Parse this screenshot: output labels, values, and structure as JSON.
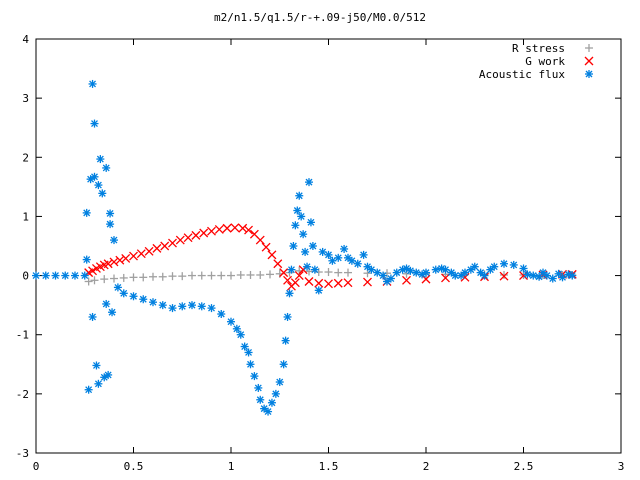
{
  "chart_data": {
    "type": "scatter",
    "title": "m2/n1.5/q1.5/r-+.09-j50/M0.0/512",
    "xlabel": "",
    "ylabel": "",
    "xlim": [
      0,
      3
    ],
    "ylim": [
      -3,
      4
    ],
    "x_ticks": [
      "0",
      "0.5",
      "1",
      "1.5",
      "2",
      "2.5",
      "3"
    ],
    "y_ticks": [
      "-3",
      "-2",
      "-1",
      "0",
      "1",
      "2",
      "3",
      "4"
    ],
    "x_tick_values": [
      0,
      0.5,
      1,
      1.5,
      2,
      2.5,
      3
    ],
    "y_tick_values": [
      -3,
      -2,
      -1,
      0,
      1,
      2,
      3,
      4
    ],
    "grid": false,
    "legend_position": "top-right",
    "series": [
      {
        "name": "R stress",
        "marker": "plus",
        "color": "#a0a0a0",
        "points": [
          [
            0.27,
            -0.1
          ],
          [
            0.3,
            -0.08
          ],
          [
            0.35,
            -0.06
          ],
          [
            0.4,
            -0.05
          ],
          [
            0.45,
            -0.04
          ],
          [
            0.5,
            -0.03
          ],
          [
            0.55,
            -0.03
          ],
          [
            0.6,
            -0.02
          ],
          [
            0.65,
            -0.02
          ],
          [
            0.7,
            -0.01
          ],
          [
            0.75,
            -0.01
          ],
          [
            0.8,
            0.0
          ],
          [
            0.85,
            0.0
          ],
          [
            0.9,
            0.0
          ],
          [
            0.95,
            0.0
          ],
          [
            1.0,
            0.0
          ],
          [
            1.05,
            0.01
          ],
          [
            1.1,
            0.01
          ],
          [
            1.15,
            0.01
          ],
          [
            1.2,
            0.02
          ],
          [
            1.25,
            0.03
          ],
          [
            1.3,
            0.05
          ],
          [
            1.35,
            0.08
          ],
          [
            1.4,
            0.07
          ],
          [
            1.45,
            0.06
          ],
          [
            1.5,
            0.06
          ],
          [
            1.55,
            0.05
          ],
          [
            1.6,
            0.05
          ],
          [
            1.7,
            0.04
          ],
          [
            1.8,
            0.04
          ],
          [
            1.9,
            0.03
          ],
          [
            2.0,
            0.03
          ],
          [
            2.1,
            0.02
          ],
          [
            2.2,
            0.02
          ],
          [
            2.3,
            0.02
          ],
          [
            2.4,
            0.01
          ],
          [
            2.5,
            0.01
          ],
          [
            2.6,
            0.01
          ],
          [
            2.7,
            0.01
          ],
          [
            2.75,
            0.01
          ]
        ]
      },
      {
        "name": "G work",
        "marker": "cross",
        "color": "#ff0000",
        "points": [
          [
            0.27,
            0.05
          ],
          [
            0.29,
            0.08
          ],
          [
            0.31,
            0.12
          ],
          [
            0.33,
            0.15
          ],
          [
            0.35,
            0.18
          ],
          [
            0.37,
            0.2
          ],
          [
            0.4,
            0.23
          ],
          [
            0.43,
            0.26
          ],
          [
            0.46,
            0.29
          ],
          [
            0.5,
            0.33
          ],
          [
            0.54,
            0.37
          ],
          [
            0.58,
            0.41
          ],
          [
            0.62,
            0.46
          ],
          [
            0.66,
            0.5
          ],
          [
            0.7,
            0.55
          ],
          [
            0.74,
            0.6
          ],
          [
            0.78,
            0.64
          ],
          [
            0.82,
            0.68
          ],
          [
            0.86,
            0.72
          ],
          [
            0.9,
            0.75
          ],
          [
            0.94,
            0.78
          ],
          [
            0.98,
            0.8
          ],
          [
            1.02,
            0.81
          ],
          [
            1.06,
            0.8
          ],
          [
            1.09,
            0.77
          ],
          [
            1.12,
            0.7
          ],
          [
            1.15,
            0.6
          ],
          [
            1.18,
            0.48
          ],
          [
            1.21,
            0.35
          ],
          [
            1.24,
            0.2
          ],
          [
            1.27,
            0.05
          ],
          [
            1.29,
            -0.08
          ],
          [
            1.31,
            -0.18
          ],
          [
            1.33,
            -0.12
          ],
          [
            1.35,
            0.0
          ],
          [
            1.37,
            0.1
          ],
          [
            1.4,
            -0.1
          ],
          [
            1.45,
            -0.13
          ],
          [
            1.5,
            -0.14
          ],
          [
            1.55,
            -0.13
          ],
          [
            1.6,
            -0.12
          ],
          [
            1.7,
            -0.11
          ],
          [
            1.8,
            -0.1
          ],
          [
            1.9,
            -0.08
          ],
          [
            2.0,
            -0.06
          ],
          [
            2.1,
            -0.04
          ],
          [
            2.2,
            -0.03
          ],
          [
            2.3,
            -0.02
          ],
          [
            2.4,
            -0.01
          ],
          [
            2.5,
            0.0
          ],
          [
            2.6,
            0.01
          ],
          [
            2.7,
            0.02
          ],
          [
            2.75,
            0.02
          ]
        ]
      },
      {
        "name": "Acoustic flux",
        "marker": "star",
        "color": "#0080e0",
        "points": [
          [
            0.0,
            0.0
          ],
          [
            0.05,
            0.0
          ],
          [
            0.1,
            0.0
          ],
          [
            0.15,
            0.0
          ],
          [
            0.2,
            0.0
          ],
          [
            0.25,
            0.0
          ],
          [
            0.26,
            0.27
          ],
          [
            0.26,
            1.06
          ],
          [
            0.27,
            -1.93
          ],
          [
            0.28,
            1.63
          ],
          [
            0.29,
            3.24
          ],
          [
            0.29,
            -0.7
          ],
          [
            0.3,
            1.67
          ],
          [
            0.3,
            2.57
          ],
          [
            0.31,
            -1.52
          ],
          [
            0.32,
            -1.83
          ],
          [
            0.32,
            1.53
          ],
          [
            0.33,
            1.97
          ],
          [
            0.34,
            1.39
          ],
          [
            0.35,
            -1.72
          ],
          [
            0.36,
            1.82
          ],
          [
            0.36,
            -0.48
          ],
          [
            0.37,
            -1.68
          ],
          [
            0.38,
            1.05
          ],
          [
            0.38,
            0.87
          ],
          [
            0.39,
            -0.62
          ],
          [
            0.4,
            0.6
          ],
          [
            0.42,
            -0.2
          ],
          [
            0.45,
            -0.3
          ],
          [
            0.5,
            -0.35
          ],
          [
            0.55,
            -0.4
          ],
          [
            0.6,
            -0.45
          ],
          [
            0.65,
            -0.5
          ],
          [
            0.7,
            -0.55
          ],
          [
            0.75,
            -0.52
          ],
          [
            0.8,
            -0.5
          ],
          [
            0.85,
            -0.52
          ],
          [
            0.9,
            -0.55
          ],
          [
            0.95,
            -0.65
          ],
          [
            1.0,
            -0.78
          ],
          [
            1.03,
            -0.9
          ],
          [
            1.05,
            -1.0
          ],
          [
            1.07,
            -1.2
          ],
          [
            1.09,
            -1.3
          ],
          [
            1.1,
            -1.5
          ],
          [
            1.12,
            -1.7
          ],
          [
            1.14,
            -1.9
          ],
          [
            1.15,
            -2.1
          ],
          [
            1.17,
            -2.25
          ],
          [
            1.19,
            -2.3
          ],
          [
            1.21,
            -2.15
          ],
          [
            1.23,
            -2.0
          ],
          [
            1.25,
            -1.8
          ],
          [
            1.27,
            -1.5
          ],
          [
            1.28,
            -1.1
          ],
          [
            1.29,
            -0.7
          ],
          [
            1.3,
            -0.3
          ],
          [
            1.31,
            0.1
          ],
          [
            1.32,
            0.5
          ],
          [
            1.33,
            0.85
          ],
          [
            1.34,
            1.1
          ],
          [
            1.35,
            1.35
          ],
          [
            1.36,
            1.0
          ],
          [
            1.37,
            0.7
          ],
          [
            1.38,
            0.4
          ],
          [
            1.39,
            0.15
          ],
          [
            1.4,
            1.58
          ],
          [
            1.41,
            0.9
          ],
          [
            1.42,
            0.5
          ],
          [
            1.43,
            0.1
          ],
          [
            1.45,
            -0.25
          ],
          [
            1.47,
            0.4
          ],
          [
            1.5,
            0.35
          ],
          [
            1.52,
            0.25
          ],
          [
            1.55,
            0.3
          ],
          [
            1.58,
            0.45
          ],
          [
            1.6,
            0.3
          ],
          [
            1.62,
            0.25
          ],
          [
            1.65,
            0.2
          ],
          [
            1.68,
            0.35
          ],
          [
            1.7,
            0.15
          ],
          [
            1.72,
            0.1
          ],
          [
            1.75,
            0.05
          ],
          [
            1.78,
            0.0
          ],
          [
            1.8,
            -0.1
          ],
          [
            1.82,
            -0.05
          ],
          [
            1.85,
            0.05
          ],
          [
            1.88,
            0.1
          ],
          [
            1.9,
            0.12
          ],
          [
            1.92,
            0.08
          ],
          [
            1.95,
            0.05
          ],
          [
            1.98,
            0.02
          ],
          [
            2.0,
            0.05
          ],
          [
            2.05,
            0.1
          ],
          [
            2.08,
            0.12
          ],
          [
            2.1,
            0.1
          ],
          [
            2.13,
            0.05
          ],
          [
            2.15,
            0.0
          ],
          [
            2.18,
            0.0
          ],
          [
            2.2,
            0.05
          ],
          [
            2.23,
            0.1
          ],
          [
            2.25,
            0.15
          ],
          [
            2.28,
            0.05
          ],
          [
            2.3,
            0.0
          ],
          [
            2.33,
            0.1
          ],
          [
            2.35,
            0.15
          ],
          [
            2.4,
            0.2
          ],
          [
            2.45,
            0.18
          ],
          [
            2.5,
            0.12
          ],
          [
            2.52,
            0.02
          ],
          [
            2.55,
            0.0
          ],
          [
            2.58,
            -0.02
          ],
          [
            2.6,
            0.05
          ],
          [
            2.62,
            0.0
          ],
          [
            2.65,
            -0.05
          ],
          [
            2.68,
            0.03
          ],
          [
            2.7,
            -0.03
          ],
          [
            2.73,
            0.02
          ],
          [
            2.75,
            0.0
          ]
        ]
      }
    ]
  }
}
